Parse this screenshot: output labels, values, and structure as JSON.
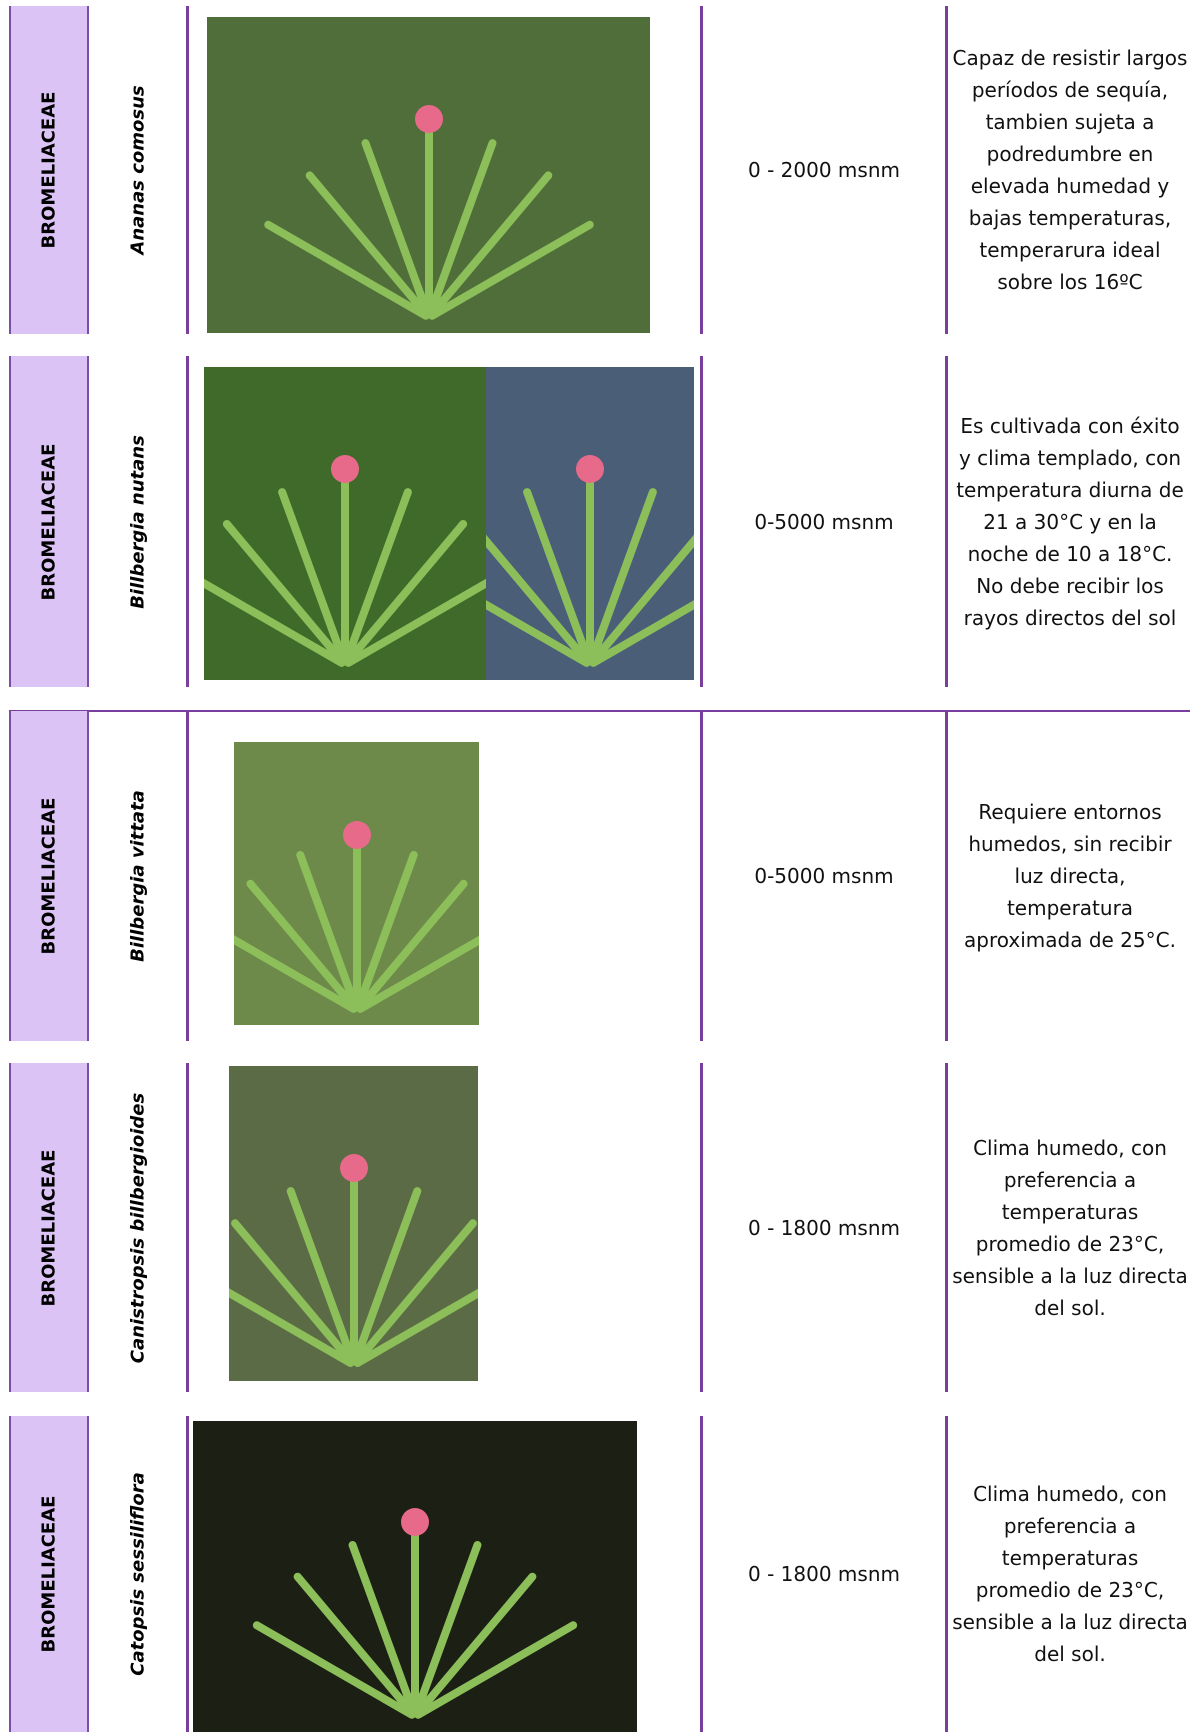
{
  "table": {
    "rows": [
      {
        "family": "BROMELIACEAE",
        "species": "Ananas comosus",
        "altitude": "0 - 2000 msnm",
        "description": "Capaz de resistir largos períodos de sequía, tambien sujeta a podredumbre en elevada humedad y bajas temperaturas, temperarura ideal sobre los 16ºC"
      },
      {
        "family": "BROMELIACEAE",
        "species": "Billbergia nutans",
        "altitude": "0-5000 msnm",
        "description": "Es cultivada con éxito y clima templado, con temperatura diurna de 21 a 30°C y en la noche de 10 a 18°C. No debe recibir los rayos directos del sol"
      },
      {
        "family": "BROMELIACEAE",
        "species": "Billbergia vittata",
        "altitude": "0-5000 msnm",
        "description": "Requiere entornos humedos, sin recibir luz directa, temperatura aproximada de 25°C."
      },
      {
        "family": "BROMELIACEAE",
        "species": "Canistropsis billbergioides",
        "altitude": "0 - 1800 msnm",
        "description": "Clima humedo, con preferencia a temperaturas promedio de 23°C, sensible a la luz directa del sol."
      },
      {
        "family": "BROMELIACEAE",
        "species": "Catopsis sessiliflora",
        "altitude": "0 - 1800 msnm",
        "description": "Clima humedo, con preferencia a temperaturas promedio de 23°C, sensible a la luz directa del sol."
      }
    ]
  }
}
